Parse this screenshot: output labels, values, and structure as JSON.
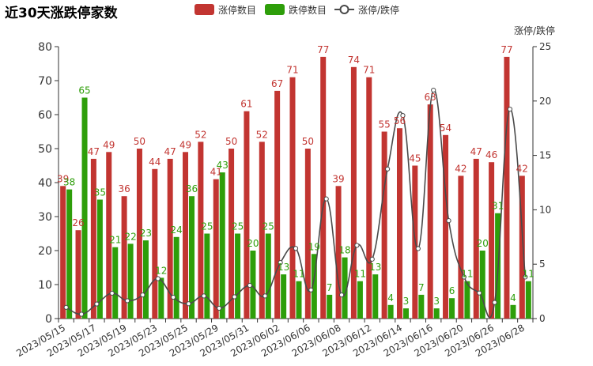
{
  "chart_data": {
    "type": "bar",
    "title": "近30天涨跌停家数",
    "y2label": "涨停/跌停",
    "ylim": [
      0,
      80
    ],
    "y2lim": [
      0,
      25
    ],
    "yticks": [
      0,
      10,
      20,
      30,
      40,
      50,
      60,
      70,
      80
    ],
    "y2ticks": [
      0,
      5,
      10,
      15,
      20,
      25
    ],
    "legend": "top-center",
    "grid": false,
    "categories": [
      "2023/05/15",
      "2023/05/16",
      "2023/05/17",
      "2023/05/18",
      "2023/05/19",
      "2023/05/22",
      "2023/05/23",
      "2023/05/24",
      "2023/05/25",
      "2023/05/26",
      "2023/05/29",
      "2023/05/30",
      "2023/05/31",
      "2023/06/01",
      "2023/06/02",
      "2023/06/05",
      "2023/06/06",
      "2023/06/07",
      "2023/06/08",
      "2023/06/09",
      "2023/06/12",
      "2023/06/13",
      "2023/06/14",
      "2023/06/15",
      "2023/06/16",
      "2023/06/19",
      "2023/06/20",
      "2023/06/21",
      "2023/06/26",
      "2023/06/27",
      "2023/06/28"
    ],
    "xtick_labels": [
      "2023/05/15",
      "2023/05/17",
      "2023/05/19",
      "2023/05/23",
      "2023/05/25",
      "2023/05/29",
      "2023/05/31",
      "2023/06/02",
      "2023/06/06",
      "2023/06/08",
      "2023/06/12",
      "2023/06/14",
      "2023/06/16",
      "2023/06/20",
      "2023/06/26",
      "2023/06/28"
    ],
    "series": [
      {
        "name": "涨停数目",
        "type": "bar",
        "axis": "left",
        "color": "#c23531",
        "values": [
          39,
          26,
          47,
          49,
          36,
          50,
          44,
          47,
          49,
          52,
          41,
          50,
          61,
          52,
          67,
          71,
          50,
          77,
          39,
          74,
          71,
          55,
          56,
          45,
          63,
          54,
          42,
          47,
          46,
          77,
          42
        ]
      },
      {
        "name": "跌停数目",
        "type": "bar",
        "axis": "left",
        "color": "#2e9e0a",
        "values": [
          38,
          65,
          35,
          21,
          22,
          23,
          12,
          24,
          36,
          25,
          43,
          25,
          20,
          25,
          13,
          11,
          19,
          7,
          18,
          11,
          13,
          4,
          3,
          7,
          3,
          6,
          11,
          20,
          31,
          4,
          11
        ]
      },
      {
        "name": "涨停/跌停",
        "type": "line",
        "axis": "right",
        "color": "#4a4a4a",
        "smooth": true,
        "values": [
          1.03,
          0.4,
          1.34,
          2.33,
          1.64,
          2.17,
          3.67,
          1.96,
          1.36,
          2.08,
          0.95,
          2.0,
          3.05,
          2.08,
          5.15,
          6.45,
          2.63,
          11.0,
          2.17,
          6.73,
          5.46,
          13.75,
          18.67,
          6.43,
          21.0,
          9.0,
          3.82,
          2.35,
          1.48,
          19.25,
          3.82
        ]
      }
    ]
  }
}
